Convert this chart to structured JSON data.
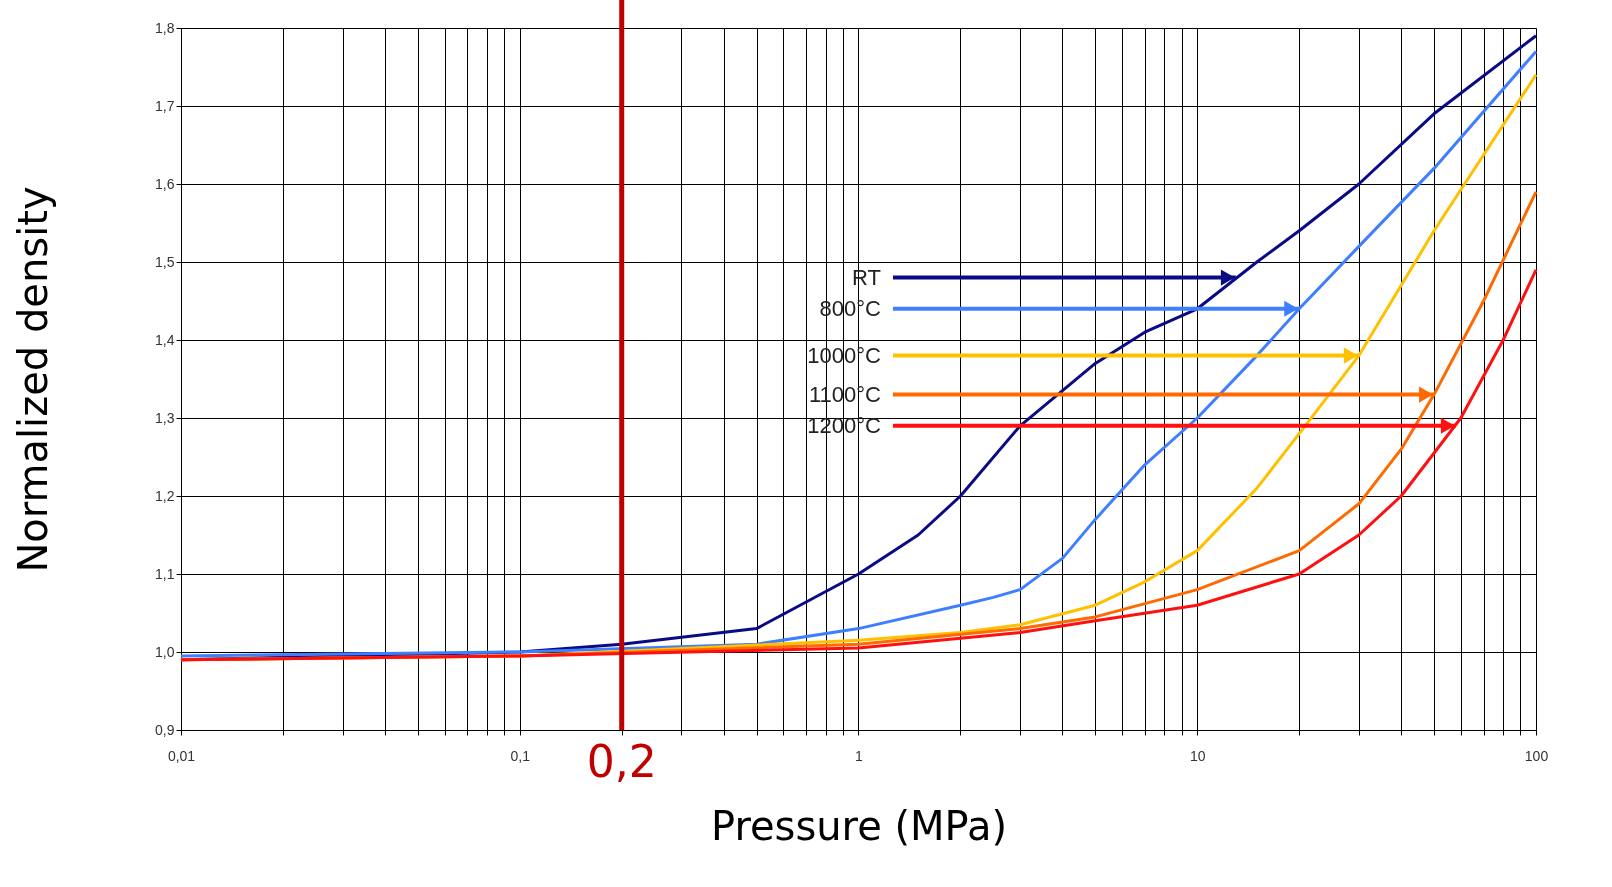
{
  "chart_data": {
    "type": "line",
    "xlabel": "Pressure (MPa)",
    "ylabel": "Normalized density",
    "log": "x",
    "xlim": [
      0.01,
      100
    ],
    "ylim": [
      0.9,
      1.8
    ],
    "xticks": [
      {
        "value": 0.01,
        "label": "0,01"
      },
      {
        "value": 0.02,
        "label": null
      },
      {
        "value": 0.03,
        "label": null
      },
      {
        "value": 0.04,
        "label": null
      },
      {
        "value": 0.05,
        "label": null
      },
      {
        "value": 0.06,
        "label": null
      },
      {
        "value": 0.07,
        "label": null
      },
      {
        "value": 0.08,
        "label": null
      },
      {
        "value": 0.09,
        "label": null
      },
      {
        "value": 0.1,
        "label": "0,1"
      },
      {
        "value": 0.2,
        "label": null
      },
      {
        "value": 0.3,
        "label": null
      },
      {
        "value": 0.4,
        "label": null
      },
      {
        "value": 0.5,
        "label": null
      },
      {
        "value": 0.6,
        "label": null
      },
      {
        "value": 0.7,
        "label": null
      },
      {
        "value": 0.8,
        "label": null
      },
      {
        "value": 0.9,
        "label": null
      },
      {
        "value": 1,
        "label": "1"
      },
      {
        "value": 2,
        "label": null
      },
      {
        "value": 3,
        "label": null
      },
      {
        "value": 4,
        "label": null
      },
      {
        "value": 5,
        "label": null
      },
      {
        "value": 6,
        "label": null
      },
      {
        "value": 7,
        "label": null
      },
      {
        "value": 8,
        "label": null
      },
      {
        "value": 9,
        "label": null
      },
      {
        "value": 10,
        "label": "10"
      },
      {
        "value": 20,
        "label": null
      },
      {
        "value": 30,
        "label": null
      },
      {
        "value": 40,
        "label": null
      },
      {
        "value": 50,
        "label": null
      },
      {
        "value": 60,
        "label": null
      },
      {
        "value": 70,
        "label": null
      },
      {
        "value": 80,
        "label": null
      },
      {
        "value": 90,
        "label": null
      },
      {
        "value": 100,
        "label": "100"
      }
    ],
    "yticks": [
      {
        "value": 0.9,
        "label": "0,9"
      },
      {
        "value": 1.0,
        "label": "1,0"
      },
      {
        "value": 1.1,
        "label": "1,1"
      },
      {
        "value": 1.2,
        "label": "1,2"
      },
      {
        "value": 1.3,
        "label": "1,3"
      },
      {
        "value": 1.4,
        "label": "1,4"
      },
      {
        "value": 1.5,
        "label": "1,5"
      },
      {
        "value": 1.6,
        "label": "1,6"
      },
      {
        "value": 1.7,
        "label": "1,7"
      },
      {
        "value": 1.8,
        "label": "1,8"
      }
    ],
    "grid": true,
    "legend": false,
    "marker": "none",
    "line_style": "solid",
    "series": [
      {
        "color": "#0a0a86",
        "x": [
          0.01,
          0.03,
          0.1,
          0.2,
          0.5,
          1,
          1.5,
          2,
          3,
          5,
          7,
          10,
          15,
          20,
          30,
          50,
          100
        ],
        "values": [
          0.99,
          0.995,
          1.0,
          1.01,
          1.03,
          1.1,
          1.15,
          1.2,
          1.29,
          1.37,
          1.41,
          1.44,
          1.5,
          1.54,
          1.6,
          1.69,
          1.79
        ]
      },
      {
        "color": "#3f7fff",
        "x": [
          0.01,
          0.1,
          0.5,
          1,
          2,
          2.5,
          3,
          4,
          5,
          7,
          10,
          15,
          20,
          30,
          50,
          100
        ],
        "values": [
          0.995,
          1.0,
          1.01,
          1.03,
          1.06,
          1.07,
          1.08,
          1.12,
          1.17,
          1.24,
          1.3,
          1.38,
          1.44,
          1.52,
          1.62,
          1.77
        ]
      },
      {
        "color": "#ffc000",
        "x": [
          0.01,
          0.1,
          1,
          2,
          3,
          5,
          7,
          10,
          15,
          20,
          30,
          50,
          100
        ],
        "values": [
          0.99,
          0.995,
          1.015,
          1.025,
          1.035,
          1.06,
          1.09,
          1.13,
          1.21,
          1.28,
          1.38,
          1.54,
          1.74
        ]
      },
      {
        "color": "#ff6a00",
        "x": [
          0.01,
          0.1,
          1,
          3,
          5,
          10,
          20,
          30,
          40,
          50,
          70,
          100
        ],
        "values": [
          0.99,
          0.995,
          1.01,
          1.03,
          1.045,
          1.08,
          1.13,
          1.19,
          1.26,
          1.33,
          1.45,
          1.59
        ]
      },
      {
        "color": "#ff1010",
        "x": [
          0.01,
          0.1,
          1,
          3,
          5,
          10,
          20,
          30,
          40,
          60,
          80,
          100
        ],
        "values": [
          0.99,
          0.995,
          1.005,
          1.025,
          1.04,
          1.06,
          1.1,
          1.15,
          1.2,
          1.3,
          1.4,
          1.49
        ]
      }
    ],
    "annotations": [
      {
        "text": "RT",
        "x": 13,
        "y": 1.48
      },
      {
        "text": "800°C",
        "x": 20,
        "y": 1.44
      },
      {
        "text": "1000°C",
        "x": 30,
        "y": 1.38
      },
      {
        "text": "1100°C",
        "x": 50,
        "y": 1.33
      },
      {
        "text": "1200°C",
        "x": 58,
        "y": 1.29
      }
    ],
    "ref_lines": [
      {
        "axis": "x",
        "value": 0.2,
        "label": "0,2",
        "color": "#c00000"
      }
    ]
  }
}
